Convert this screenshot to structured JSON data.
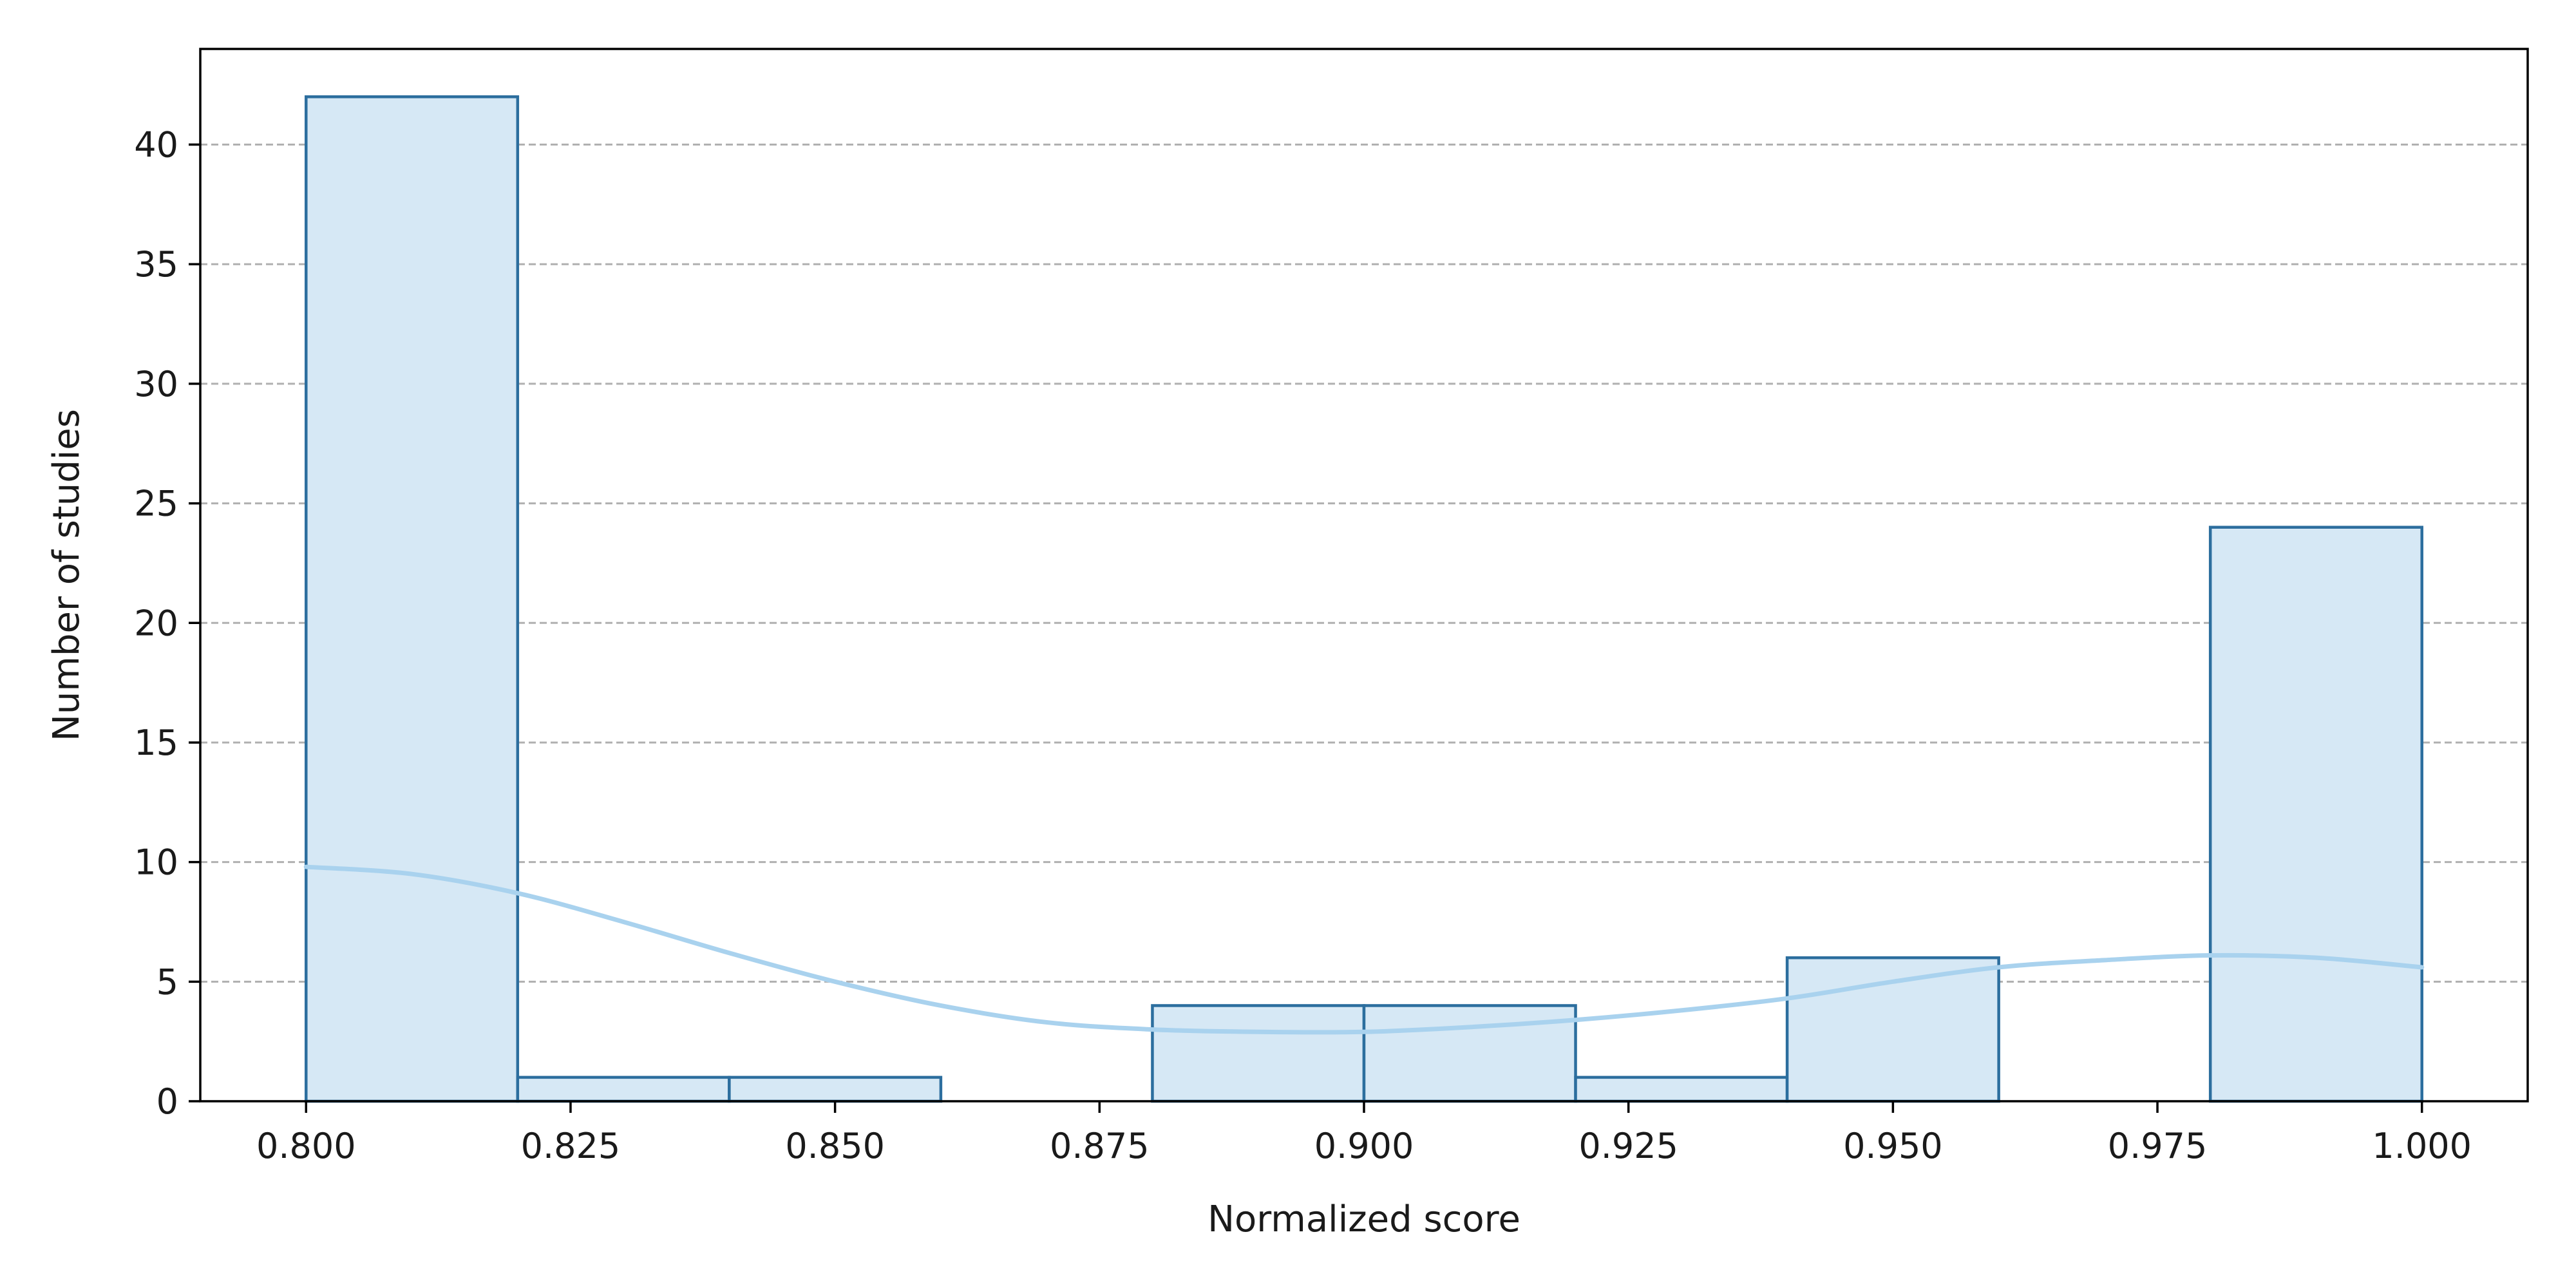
{
  "chart_data": {
    "type": "bar",
    "subtype": "histogram",
    "xlabel": "Normalized score",
    "ylabel": "Number of studies",
    "xlim": [
      0.79,
      1.01
    ],
    "ylim": [
      0,
      44
    ],
    "grid": {
      "y": true,
      "x": false,
      "style": "dashed"
    },
    "bins": [
      {
        "start": 0.8,
        "end": 0.82,
        "count": 42
      },
      {
        "start": 0.82,
        "end": 0.84,
        "count": 1
      },
      {
        "start": 0.84,
        "end": 0.86,
        "count": 1
      },
      {
        "start": 0.86,
        "end": 0.88,
        "count": 0
      },
      {
        "start": 0.88,
        "end": 0.9,
        "count": 4
      },
      {
        "start": 0.9,
        "end": 0.92,
        "count": 4
      },
      {
        "start": 0.92,
        "end": 0.94,
        "count": 1
      },
      {
        "start": 0.94,
        "end": 0.96,
        "count": 6
      },
      {
        "start": 0.96,
        "end": 0.98,
        "count": 0
      },
      {
        "start": 0.98,
        "end": 1.0,
        "count": 24
      }
    ],
    "kde": {
      "x": [
        0.8,
        0.81,
        0.82,
        0.83,
        0.84,
        0.85,
        0.86,
        0.87,
        0.88,
        0.89,
        0.9,
        0.91,
        0.92,
        0.93,
        0.94,
        0.95,
        0.96,
        0.97,
        0.98,
        0.99,
        1.0
      ],
      "y": [
        9.8,
        9.5,
        8.7,
        7.5,
        6.2,
        5.0,
        4.0,
        3.3,
        3.0,
        2.9,
        2.9,
        3.1,
        3.4,
        3.8,
        4.3,
        5.0,
        5.6,
        5.9,
        6.1,
        6.0,
        5.6
      ]
    },
    "xticks": [
      "0.800",
      "0.825",
      "0.850",
      "0.875",
      "0.900",
      "0.925",
      "0.950",
      "0.975",
      "1.000"
    ],
    "yticks": [
      "0",
      "5",
      "10",
      "15",
      "20",
      "25",
      "30",
      "35",
      "40"
    ],
    "colors": {
      "bar_fill": "#d6e8f5",
      "bar_edge": "#2c6e9e",
      "kde_line": "#a9d2ee",
      "grid": "#b0b0b0"
    }
  }
}
